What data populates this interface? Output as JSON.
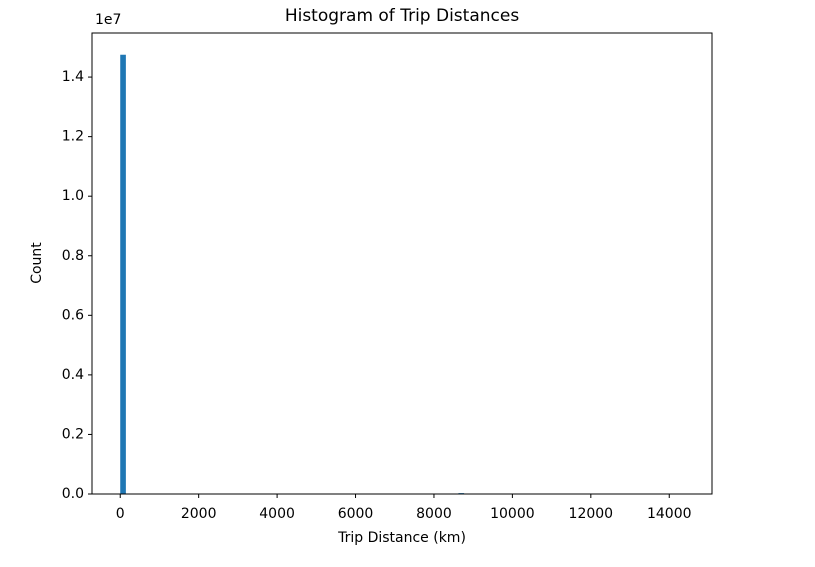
{
  "chart_data": {
    "type": "histogram",
    "title": "Histogram of Trip Distances",
    "x_label": "Trip Distance (km)",
    "y_label": "Count",
    "y_offset_label": "1e7",
    "color": "#1f77b4",
    "bins": [
      0,
      143.74,
      287.48,
      431.22,
      574.96,
      718.7,
      862.44,
      1006.18,
      1149.92,
      1293.66,
      1437.4,
      1581.14,
      1724.88,
      1868.62,
      2012.36,
      2156.1,
      2299.84,
      2443.58,
      2587.32,
      2731.06,
      2874.8,
      3018.54,
      3162.28,
      3306.02,
      3449.76,
      3593.5,
      3737.24,
      3880.98,
      4024.72,
      4168.46,
      4312.2,
      4455.94,
      4599.68,
      4743.42,
      4887.16,
      5030.9,
      5174.64,
      5318.38,
      5462.12,
      5605.86,
      5749.6,
      5893.34,
      6037.08,
      6180.82,
      6324.56,
      6468.3,
      6612.04,
      6755.78,
      6899.52,
      7043.26,
      7187,
      7330.74,
      7474.48,
      7618.22,
      7761.96,
      7905.7,
      8049.44,
      8193.18,
      8336.92,
      8480.66,
      8624.4,
      8768.14,
      8911.88,
      9055.62,
      9199.36,
      9343.1,
      9486.84,
      9630.58,
      9774.32,
      9918.06,
      10061.8,
      10205.54,
      10349.28,
      10493.02,
      10636.76,
      10780.5,
      10924.24,
      11067.98,
      11211.72,
      11355.46,
      11499.2,
      11642.94,
      11786.68,
      11930.42,
      12074.16,
      12217.9,
      12361.64,
      12505.38,
      12649.12,
      12792.86,
      12936.6,
      13080.34,
      13224.08,
      13367.82,
      13511.56,
      13655.3,
      13799.04,
      13942.78,
      14086.52,
      14230.26,
      14374
    ],
    "values": [
      14750000,
      0,
      0,
      0,
      0,
      0,
      0,
      0,
      0,
      0,
      0,
      0,
      0,
      0,
      0,
      0,
      0,
      0,
      0,
      0,
      0,
      0,
      0,
      0,
      0,
      0,
      0,
      0,
      0,
      0,
      0,
      0,
      0,
      0,
      0,
      0,
      0,
      0,
      0,
      0,
      0,
      0,
      0,
      0,
      0,
      0,
      0,
      0,
      0,
      0,
      0,
      0,
      0,
      0,
      0,
      0,
      0,
      0,
      0,
      0,
      30000,
      0,
      0,
      0,
      0,
      0,
      0,
      0,
      0,
      0,
      0,
      0,
      0,
      0,
      0,
      0,
      0,
      0,
      0,
      0,
      0,
      0,
      0,
      0,
      0,
      0,
      0,
      0,
      0,
      0,
      0,
      0,
      0,
      0,
      0,
      0,
      0,
      0,
      0,
      0
    ],
    "xlim": [
      -720,
      15090
    ],
    "ylim": [
      0,
      15480000
    ],
    "xticks": [
      0,
      2000,
      4000,
      6000,
      8000,
      10000,
      12000,
      14000
    ],
    "yticks": [
      {
        "value": 0,
        "label": "0.0"
      },
      {
        "value": 2000000,
        "label": "0.2"
      },
      {
        "value": 4000000,
        "label": "0.4"
      },
      {
        "value": 6000000,
        "label": "0.6"
      },
      {
        "value": 8000000,
        "label": "0.8"
      },
      {
        "value": 10000000,
        "label": "1.0"
      },
      {
        "value": 12000000,
        "label": "1.2"
      },
      {
        "value": 14000000,
        "label": "1.4"
      }
    ],
    "grid": false
  }
}
